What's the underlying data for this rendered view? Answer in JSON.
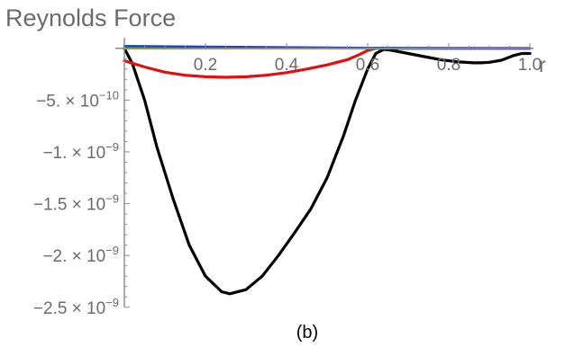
{
  "chart_data": {
    "type": "line",
    "title": "Reynolds Force",
    "xlabel": "r",
    "ylabel": "",
    "caption": "(b)",
    "xlim": [
      0,
      1.0
    ],
    "ylim": [
      -2.45e-09,
      5e-11
    ],
    "x_ticks": [
      {
        "value": 0.2,
        "label": "0.2"
      },
      {
        "value": 0.4,
        "label": "0.4"
      },
      {
        "value": 0.6,
        "label": "0.6"
      },
      {
        "value": 0.8,
        "label": "0.8"
      },
      {
        "value": 1.0,
        "label": "1.0"
      }
    ],
    "y_ticks": [
      {
        "value": -5e-10,
        "mantissa": "−5. × 10",
        "exponent": "−10"
      },
      {
        "value": -1e-09,
        "mantissa": "−1. × 10",
        "exponent": "−9"
      },
      {
        "value": -1.5e-09,
        "mantissa": "−1.5 × 10",
        "exponent": "−9"
      },
      {
        "value": -2e-09,
        "mantissa": "−2. × 10",
        "exponent": "−9"
      },
      {
        "value": -2.5e-09,
        "mantissa": "−2.5 × 10",
        "exponent": "−9"
      }
    ],
    "grid": false,
    "series": [
      {
        "color": "#000000",
        "x": [
          0,
          0.02,
          0.05,
          0.08,
          0.12,
          0.16,
          0.2,
          0.24,
          0.26,
          0.3,
          0.34,
          0.38,
          0.42,
          0.46,
          0.5,
          0.54,
          0.57,
          0.6,
          0.62,
          0.64,
          0.66,
          0.7,
          0.74,
          0.78,
          0.82,
          0.86,
          0.88,
          0.9,
          0.93,
          0.96,
          0.98,
          1.0
        ],
        "y": [
          0,
          -1.5e-10,
          -5e-10,
          -9.5e-10,
          -1.45e-09,
          -1.9e-09,
          -2.2e-09,
          -2.35e-09,
          -2.37e-09,
          -2.33e-09,
          -2.2e-09,
          -2e-09,
          -1.78e-09,
          -1.55e-09,
          -1.25e-09,
          -8.5e-10,
          -5e-10,
          -2e-10,
          -5e-11,
          -1e-11,
          -2e-11,
          -5e-11,
          -8e-11,
          -1.1e-10,
          -1.3e-10,
          -1.4e-10,
          -1.4e-10,
          -1.35e-10,
          -1.15e-10,
          -7e-11,
          -5e-11,
          -5e-11
        ]
      },
      {
        "color": "#e01010",
        "x": [
          0,
          0.05,
          0.1,
          0.15,
          0.2,
          0.25,
          0.3,
          0.35,
          0.4,
          0.45,
          0.5,
          0.55,
          0.58,
          0.6,
          0.62,
          0.65,
          0.7,
          0.8,
          0.9,
          1.0
        ],
        "y": [
          -1.2e-10,
          -1.8e-10,
          -2.3e-10,
          -2.6e-10,
          -2.75e-10,
          -2.8e-10,
          -2.75e-10,
          -2.6e-10,
          -2.35e-10,
          -2e-10,
          -1.6e-10,
          -1.1e-10,
          -6e-11,
          -2e-11,
          0,
          0,
          0,
          0,
          0,
          0
        ]
      },
      {
        "color": "#d9a000",
        "x": [
          0,
          0.5,
          1.0
        ],
        "y": [
          0,
          0,
          0
        ]
      },
      {
        "color": "#2ea02e",
        "x": [
          0,
          0.3,
          0.6,
          1.0
        ],
        "y": [
          1e-11,
          6e-12,
          2e-12,
          0
        ]
      },
      {
        "color": "#1f3fd0",
        "x": [
          0,
          0.2,
          0.4,
          0.6,
          0.8,
          1.0
        ],
        "y": [
          2.2e-11,
          1.6e-11,
          1e-11,
          4e-12,
          1e-12,
          0
        ]
      }
    ]
  }
}
